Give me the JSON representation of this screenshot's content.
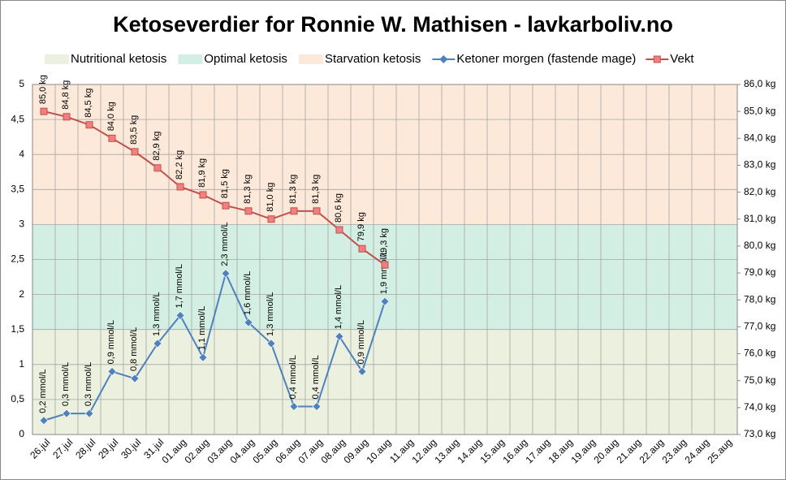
{
  "chart_data": {
    "type": "line",
    "title": "Ketoseverdier for Ronnie W. Mathisen - lavkarboliv.no",
    "categories": [
      "26.jul",
      "27.jul",
      "28.jul",
      "29.jul",
      "30.jul",
      "31.jul",
      "01.aug",
      "02.aug",
      "03.aug",
      "04.aug",
      "05.aug",
      "06.aug",
      "07.aug",
      "08.aug",
      "09.aug",
      "10.aug",
      "11.aug",
      "12.aug",
      "13.aug",
      "14.aug",
      "15.aug",
      "16.aug",
      "17.aug",
      "18.aug",
      "19.aug",
      "20.aug",
      "21.aug",
      "22.aug",
      "23.aug",
      "24.aug",
      "25.aug"
    ],
    "bands": [
      {
        "name": "Nutritional ketosis",
        "from": 0,
        "to": 1.5,
        "color": "#ebf1de"
      },
      {
        "name": "Optimal ketosis",
        "from": 1.5,
        "to": 3,
        "color": "#d3eee2"
      },
      {
        "name": "Starvation ketosis",
        "from": 3,
        "to": 5,
        "color": "#fde9d9"
      }
    ],
    "series": [
      {
        "name": "Ketoner morgen (fastende mage)",
        "color": "#4f81bd",
        "marker": "diamond",
        "axis": "y",
        "values": [
          0.2,
          0.3,
          0.3,
          0.9,
          0.8,
          1.3,
          1.7,
          1.1,
          2.3,
          1.6,
          1.3,
          0.4,
          0.4,
          1.4,
          0.9,
          1.9,
          null,
          null,
          null,
          null,
          null,
          null,
          null,
          null,
          null,
          null,
          null,
          null,
          null,
          null,
          null
        ],
        "value_labels": [
          "0,2 mmol/L",
          "0,3 mmol/L",
          "0,3 mmol/L",
          "0,9 mmol/L",
          "0,8 mmol/L",
          "1,3 mmol/L",
          "1,7 mmol/L",
          "1,1 mmol/L",
          "2,3 mmol/L",
          "1,6 mmol/L",
          "1,3 mmol/L",
          "0,4 mmol/L",
          "0,4 mmol/L",
          "1,4 mmol/L",
          "0,9 mmol/L",
          "1,9 mmol/L",
          null,
          null,
          null,
          null,
          null,
          null,
          null,
          null,
          null,
          null,
          null,
          null,
          null,
          null,
          null
        ]
      },
      {
        "name": "Vekt",
        "color": "#c0504d",
        "marker": "square",
        "axis": "y2",
        "values": [
          85.0,
          84.8,
          84.5,
          84.0,
          83.5,
          82.9,
          82.2,
          81.9,
          81.5,
          81.3,
          81.0,
          81.3,
          81.3,
          80.6,
          79.9,
          79.3,
          null,
          null,
          null,
          null,
          null,
          null,
          null,
          null,
          null,
          null,
          null,
          null,
          null,
          null,
          null
        ],
        "value_labels": [
          "85,0 kg",
          "84,8 kg",
          "84,5 kg",
          "84,0 kg",
          "83,5 kg",
          "82,9 kg",
          "82,2 kg",
          "81,9 kg",
          "81,5 kg",
          "81,3 kg",
          "81,0 kg",
          "81,3 kg",
          "81,3 kg",
          "80,6 kg",
          "79,9 kg",
          "79,3 kg",
          null,
          null,
          null,
          null,
          null,
          null,
          null,
          null,
          null,
          null,
          null,
          null,
          null,
          null,
          null
        ]
      }
    ],
    "ylim": [
      0,
      5
    ],
    "yticks": [
      0,
      {
        "value": 0.5,
        "label": "0,5"
      },
      1,
      {
        "value": 1.5,
        "label": "1,5"
      },
      2,
      {
        "value": 2.5,
        "label": "2,5"
      },
      3,
      {
        "value": 3.5,
        "label": "3,5"
      },
      4,
      {
        "value": 4.5,
        "label": "4,5"
      },
      5
    ],
    "y2lim": [
      73,
      86
    ],
    "y2ticks": [
      {
        "value": 73,
        "label": "73,0 kg"
      },
      {
        "value": 74,
        "label": "74,0 kg"
      },
      {
        "value": 75,
        "label": "75,0 kg"
      },
      {
        "value": 76,
        "label": "76,0 kg"
      },
      {
        "value": 77,
        "label": "77,0 kg"
      },
      {
        "value": 78,
        "label": "78,0 kg"
      },
      {
        "value": 79,
        "label": "79,0 kg"
      },
      {
        "value": 80,
        "label": "80,0 kg"
      },
      {
        "value": 81,
        "label": "81,0 kg"
      },
      {
        "value": 82,
        "label": "82,0 kg"
      },
      {
        "value": 83,
        "label": "83,0 kg"
      },
      {
        "value": 84,
        "label": "84,0 kg"
      },
      {
        "value": 85,
        "label": "85,0 kg"
      },
      {
        "value": 86,
        "label": "86,0 kg"
      }
    ],
    "grid": true,
    "legend": "top"
  }
}
